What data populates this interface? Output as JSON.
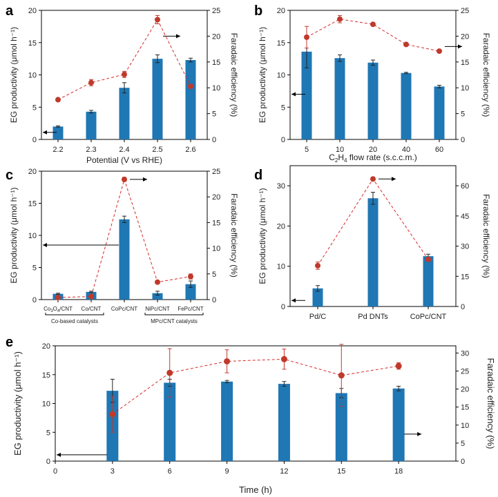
{
  "chart_data": [
    {
      "panel": "a",
      "type": "bar",
      "categories": [
        "2.2",
        "2.3",
        "2.4",
        "2.5",
        "2.6"
      ],
      "series": [
        {
          "name": "EG productivity",
          "axis": "left",
          "values": [
            2.0,
            4.3,
            8.0,
            12.5,
            12.3
          ],
          "errors": [
            0.1,
            0.2,
            0.8,
            0.6,
            0.3
          ]
        },
        {
          "name": "Faradaic efficiency",
          "axis": "right",
          "kind": "line",
          "values": [
            7.7,
            11.0,
            12.6,
            23.2,
            10.3
          ],
          "errors": [
            0.3,
            0.6,
            0.6,
            0.8,
            0.4
          ]
        }
      ],
      "xlabel": "Potential (V vs RHE)",
      "ylabel_left": "EG productivity (μmol h⁻¹)",
      "ylabel_right": "Faradaic efficiency (%)",
      "ylim_left": [
        0,
        20
      ],
      "yticks_left": [
        "0",
        "5",
        "10",
        "15",
        "20"
      ],
      "ylim_right": [
        0,
        25
      ],
      "yticks_right": [
        "0",
        "5",
        "10",
        "15",
        "20",
        "25"
      ],
      "arrows": [
        {
          "series": "EG productivity",
          "direction": "left"
        },
        {
          "series": "Faradaic efficiency",
          "direction": "right"
        }
      ]
    },
    {
      "panel": "b",
      "type": "bar",
      "categories": [
        "5",
        "10",
        "20",
        "40",
        "60"
      ],
      "series": [
        {
          "name": "EG productivity",
          "axis": "left",
          "values": [
            13.6,
            12.6,
            11.9,
            10.3,
            8.2
          ],
          "errors": [
            2.5,
            0.5,
            0.4,
            0.1,
            0.2
          ]
        },
        {
          "name": "Faradaic efficiency",
          "axis": "right",
          "kind": "line",
          "values": [
            19.8,
            23.3,
            22.3,
            18.4,
            17.1
          ],
          "errors": [
            2.1,
            0.7,
            0.3,
            0.2,
            0.3
          ]
        }
      ],
      "xlabel_main": "C",
      "xlabel_sub": "2",
      "xlabel_main2": "H",
      "xlabel_sub2": "4",
      "xlabel_rest": " flow rate (s.c.c.m.)",
      "ylabel_left": "EG productivity (μmol h⁻¹)",
      "ylabel_right": "Faradaic efficiency (%)",
      "ylim_left": [
        0,
        20
      ],
      "yticks_left": [
        "0",
        "5",
        "10",
        "15",
        "20"
      ],
      "ylim_right": [
        0,
        25
      ],
      "yticks_right": [
        "0",
        "5",
        "10",
        "15",
        "20",
        "25"
      ]
    },
    {
      "panel": "c",
      "type": "bar",
      "categories": [
        "Co3O4/CNT",
        "Co/CNT",
        "CoPc/CNT",
        "NiPc/CNT",
        "FePc/CNT"
      ],
      "category_parts": [
        {
          "main": "Co",
          "sub": "3",
          "main2": "O",
          "sub2": "4",
          "rest": "/CNT"
        },
        {
          "main": "Co/CNT"
        },
        {
          "main": "CoPc/CNT"
        },
        {
          "main": "NiPc/CNT"
        },
        {
          "main": "FePc/CNT"
        }
      ],
      "series": [
        {
          "name": "EG productivity",
          "axis": "left",
          "values": [
            0.9,
            1.2,
            12.5,
            1.0,
            2.4
          ],
          "errors": [
            0.1,
            0.1,
            0.5,
            0.3,
            0.5
          ]
        },
        {
          "name": "Faradaic efficiency",
          "axis": "right",
          "kind": "line",
          "values": [
            0.4,
            0.6,
            23.4,
            3.4,
            4.5
          ],
          "errors": [
            0.1,
            0.4,
            0.4,
            0.3,
            0.5
          ]
        }
      ],
      "group_labels": [
        "Co-based catalysts",
        "MPc/CNT catalysts"
      ],
      "ylabel_left": "EG productivity (μmol h⁻¹)",
      "ylabel_right": "Faradaic efficiency (%)",
      "ylim_left": [
        0,
        20
      ],
      "yticks_left": [
        "0",
        "5",
        "10",
        "15",
        "20"
      ],
      "ylim_right": [
        0,
        25
      ],
      "yticks_right": [
        "0",
        "5",
        "10",
        "15",
        "20",
        "25"
      ]
    },
    {
      "panel": "d",
      "type": "bar",
      "categories": [
        "Pd/C",
        "Pd DNTs",
        "CoPc/CNT"
      ],
      "series": [
        {
          "name": "EG productivity",
          "axis": "left",
          "values": [
            4.5,
            26.9,
            12.5
          ],
          "errors": [
            0.7,
            1.5,
            0.5
          ]
        },
        {
          "name": "Faradaic efficiency",
          "axis": "right",
          "kind": "line",
          "values": [
            20.3,
            63.4,
            23.4
          ],
          "errors": [
            1.8,
            0.4,
            1.0
          ]
        }
      ],
      "ylabel_left": "EG productivity (μmol h⁻¹)",
      "ylabel_right": "Faradaic efficiency (%)",
      "ylim_left": [
        0,
        35
      ],
      "yticks_left": [
        "0",
        "10",
        "20",
        "30"
      ],
      "ylim_right": [
        0,
        70
      ],
      "yticks_right": [
        "0",
        "15",
        "30",
        "45",
        "60"
      ]
    },
    {
      "panel": "e",
      "type": "bar",
      "x": [
        3,
        6,
        9,
        12,
        15,
        18
      ],
      "xticks": [
        "0",
        "3",
        "6",
        "9",
        "12",
        "15",
        "18"
      ],
      "xlim": [
        0,
        21
      ],
      "series": [
        {
          "name": "EG productivity",
          "axis": "left",
          "values": [
            12.2,
            13.6,
            13.8,
            13.4,
            11.8,
            12.6
          ],
          "errors": [
            2.0,
            0.6,
            0.2,
            0.4,
            0.8,
            0.4
          ]
        },
        {
          "name": "Faradaic efficiency",
          "axis": "right",
          "kind": "line",
          "values": [
            13.0,
            24.5,
            27.7,
            28.3,
            23.8,
            26.4
          ],
          "errors": [
            5.0,
            6.7,
            3.2,
            2.8,
            8.6,
            0.9
          ]
        }
      ],
      "xlabel": "Time (h)",
      "ylabel_left": "EG productivity (μmol h⁻¹)",
      "ylabel_right": "Faradaic efficiency (%)",
      "ylim_left": [
        0,
        20
      ],
      "yticks_left": [
        "0",
        "5",
        "10",
        "15",
        "20"
      ],
      "ylim_right": [
        0,
        32
      ],
      "yticks_right": [
        "0",
        "5",
        "10",
        "15",
        "20",
        "25",
        "30"
      ]
    }
  ],
  "colors": {
    "bar": "#1f77b4",
    "fe": "#c0392b",
    "fe_line": "#d62728"
  }
}
